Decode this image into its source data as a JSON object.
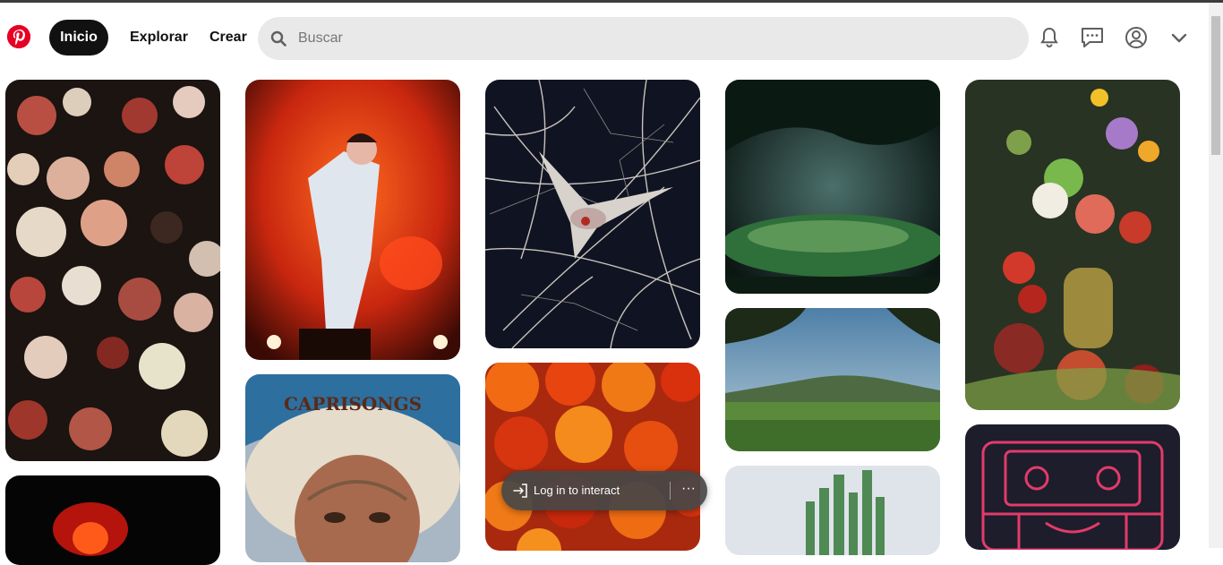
{
  "header": {
    "logo_icon": "pinterest-logo-icon",
    "brand_color": "#e60023",
    "nav": {
      "home": "Inicio",
      "explore": "Explorar",
      "create": "Crear"
    },
    "search": {
      "placeholder": "Buscar",
      "value": "",
      "icon": "search-icon"
    },
    "icons": [
      "notifications-bell-icon",
      "messages-icon",
      "profile-icon",
      "chevron-down-icon"
    ]
  },
  "pins": [
    {
      "id": "pin-flowers-dark",
      "image": "dark floral still life"
    },
    {
      "id": "pin-singer-red",
      "image": "performer on red-lit stage"
    },
    {
      "id": "pin-dove-branches",
      "image": "dove among bare branches"
    },
    {
      "id": "pin-forest-light",
      "image": "misty forest clearing"
    },
    {
      "id": "pin-bouquet",
      "image": "lavish flower bouquet with fruit"
    },
    {
      "id": "pin-red-glow",
      "image": "red glowing figure on black"
    },
    {
      "id": "pin-caprisongs",
      "image": "album cover portrait",
      "caption": "CAPRISONGS"
    },
    {
      "id": "pin-marigolds",
      "image": "orange marigolds"
    },
    {
      "id": "pin-landscape",
      "image": "green valley with mountains"
    },
    {
      "id": "pin-cactus",
      "image": "tall cactus against sky"
    },
    {
      "id": "pin-aztec-pink",
      "image": "pink aztec sculpture on dark background"
    }
  ],
  "overlay": {
    "login_label": "Log in to interact",
    "login_icon": "login-arrow-icon",
    "more_icon": "more-options-icon",
    "more_label": "···"
  }
}
